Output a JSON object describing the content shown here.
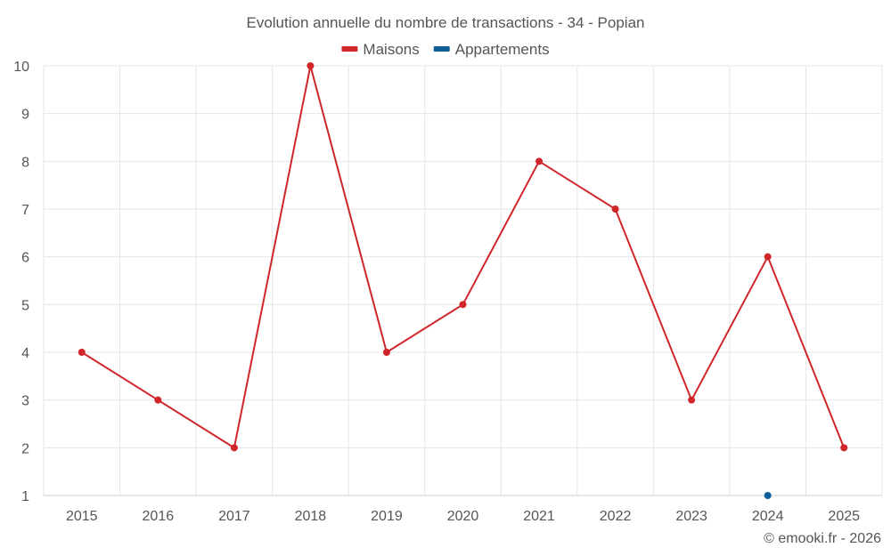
{
  "chart_data": {
    "type": "line",
    "title": "Evolution annuelle du nombre de transactions - 34 - Popian",
    "xlabel": "",
    "ylabel": "",
    "categories": [
      "2015",
      "2016",
      "2017",
      "2018",
      "2019",
      "2020",
      "2021",
      "2022",
      "2023",
      "2024",
      "2025"
    ],
    "ylim": [
      1,
      10
    ],
    "yticks": [
      "1",
      "2",
      "3",
      "4",
      "5",
      "6",
      "7",
      "8",
      "9",
      "10"
    ],
    "grid": true,
    "legend_position": "top-center",
    "series": [
      {
        "name": "Maisons",
        "color": "#d0262a",
        "values": [
          4,
          3,
          2,
          10,
          4,
          5,
          8,
          7,
          3,
          6,
          2
        ]
      },
      {
        "name": "Appartements",
        "color": "#0e5f96",
        "values": [
          null,
          null,
          null,
          null,
          null,
          null,
          null,
          null,
          null,
          1,
          null
        ]
      }
    ]
  },
  "credit": "© emooki.fr - 2026"
}
